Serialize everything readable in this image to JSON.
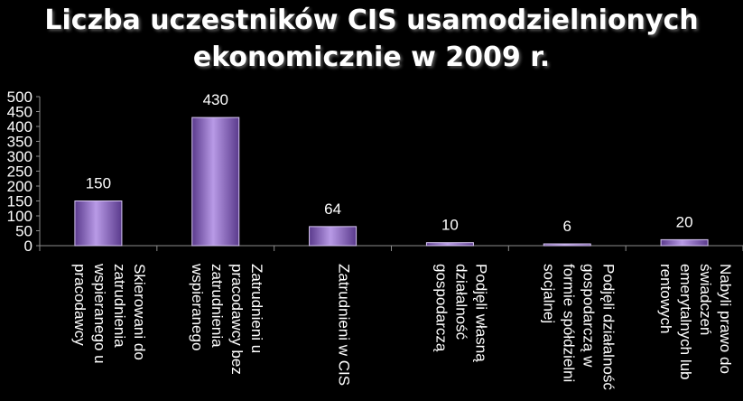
{
  "chart_data": {
    "type": "bar",
    "title_lines": [
      "Liczba uczestników CIS usamodzielnionych",
      "ekonomicznie w 2009 r."
    ],
    "categories": [
      [
        "Skierowani do",
        "zatrudnienia",
        "wspieranego u",
        "pracodawcy"
      ],
      [
        "Zatrudnieni u",
        "pracodawcy bez",
        "zatrudnienia",
        "wspieranego"
      ],
      [
        "Zatrudnieni w CIS"
      ],
      [
        "Podjęli własną",
        "działalność",
        "gospodarczą"
      ],
      [
        "Podjęli działalność",
        "gospodarczą w",
        "formie spółdzielni",
        "socjalnej"
      ],
      [
        "Nabyli prawo do",
        "świadczeń",
        "emerytalnych lub",
        "rentowych"
      ]
    ],
    "values": [
      150,
      430,
      64,
      10,
      6,
      20
    ],
    "data_labels": [
      "150",
      "430",
      "64",
      "10",
      "6",
      "20"
    ],
    "ylim": [
      0,
      500
    ],
    "yticks": [
      "0",
      "50",
      "100",
      "150",
      "200",
      "250",
      "300",
      "350",
      "400",
      "450",
      "500"
    ],
    "legend": false,
    "grid": false,
    "colors": {
      "background": "#000000",
      "bar_fill": "#8a5fc4",
      "bar_fill_light": "#b89ae6",
      "bar_fill_dark": "#5a3a8c",
      "text": "#ffffff",
      "axis": "#8c8c8c"
    }
  }
}
